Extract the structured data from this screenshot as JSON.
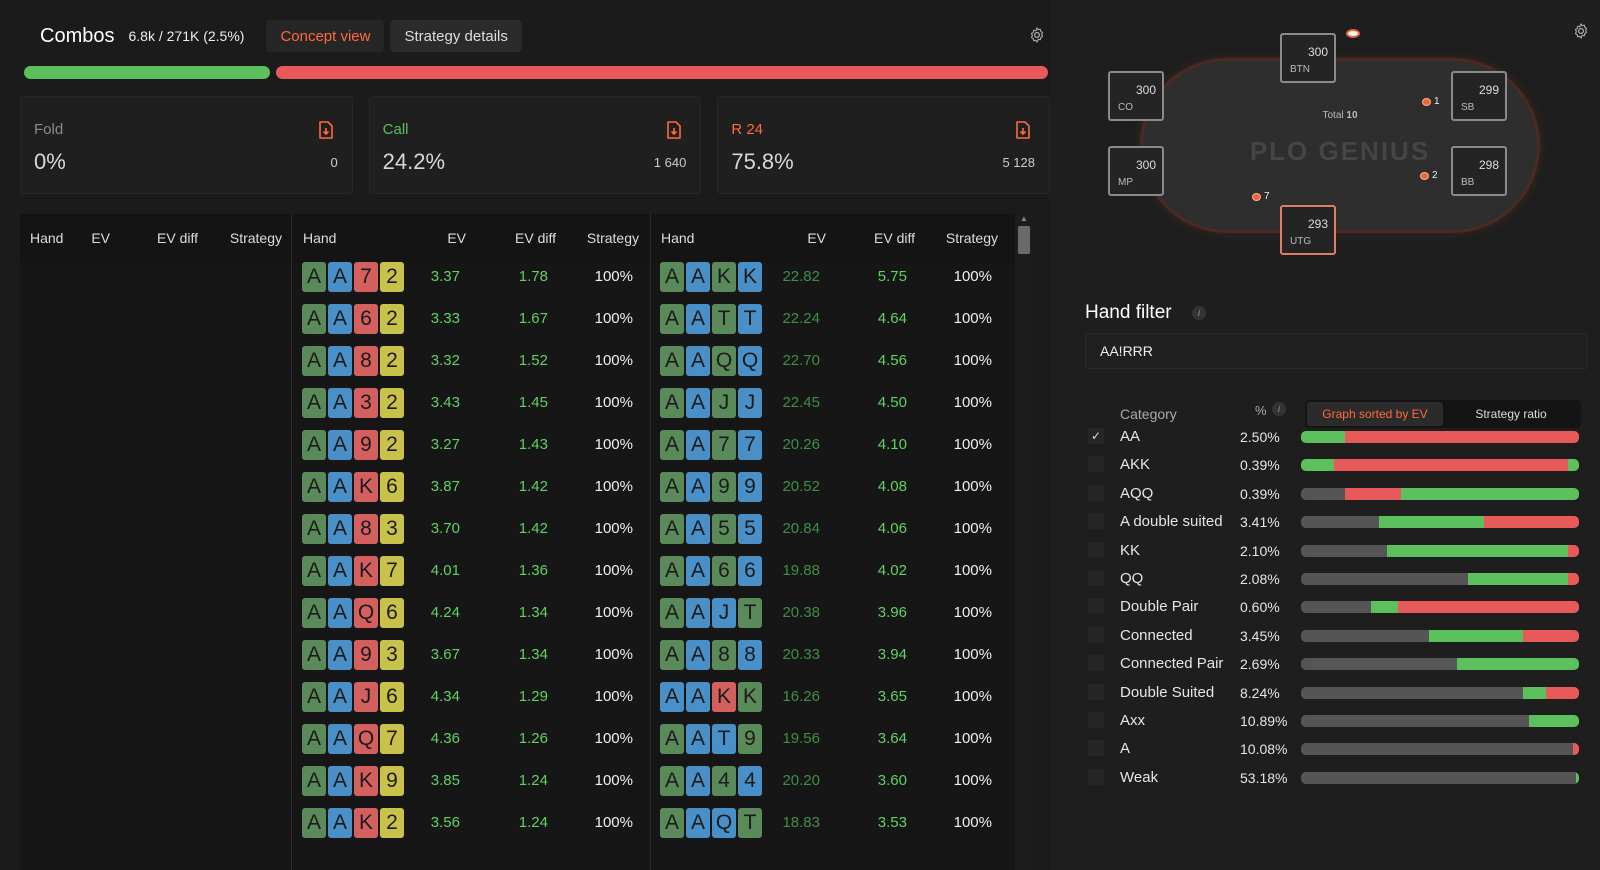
{
  "header": {
    "title": "Combos",
    "combos_count": "6.8k / 271K (2.5%)",
    "concept_view": "Concept view",
    "strategy_details": "Strategy details"
  },
  "colors": {
    "accent": "#ff6a3d",
    "fold": "#8a8a8a",
    "call": "#5cc05c",
    "raise": "#e85a5a",
    "suit_green": "#5a8a5a",
    "suit_blue": "#4a90c8",
    "suit_red": "#d45f5f",
    "suit_yellow": "#c9c24a"
  },
  "strategy_bar": [
    {
      "action": "call",
      "percent": 24.2
    },
    {
      "action": "raise",
      "percent": 75.8
    }
  ],
  "actions": [
    {
      "label": "Fold",
      "percent": "0%",
      "count": "0",
      "color": "#8a8a8a",
      "icon": "export-icon"
    },
    {
      "label": "Call",
      "percent": "24.2%",
      "count": "1 640",
      "color": "#5cc05c",
      "icon": "export-icon"
    },
    {
      "label": "R 24",
      "percent": "75.8%",
      "count": "5 128",
      "color": "#ff6a3d",
      "icon": "export-icon"
    }
  ],
  "table": {
    "columns": [
      "Hand",
      "EV",
      "EV diff",
      "Strategy"
    ],
    "middle_rows": [
      {
        "cards": [
          [
            "A",
            "g"
          ],
          [
            "A",
            "b"
          ],
          [
            "7",
            "r"
          ],
          [
            "2",
            "y"
          ]
        ],
        "ev": "3.37",
        "ev_diff": "1.78",
        "strategy": "100%"
      },
      {
        "cards": [
          [
            "A",
            "g"
          ],
          [
            "A",
            "b"
          ],
          [
            "6",
            "r"
          ],
          [
            "2",
            "y"
          ]
        ],
        "ev": "3.33",
        "ev_diff": "1.67",
        "strategy": "100%"
      },
      {
        "cards": [
          [
            "A",
            "g"
          ],
          [
            "A",
            "b"
          ],
          [
            "8",
            "r"
          ],
          [
            "2",
            "y"
          ]
        ],
        "ev": "3.32",
        "ev_diff": "1.52",
        "strategy": "100%"
      },
      {
        "cards": [
          [
            "A",
            "g"
          ],
          [
            "A",
            "b"
          ],
          [
            "3",
            "r"
          ],
          [
            "2",
            "y"
          ]
        ],
        "ev": "3.43",
        "ev_diff": "1.45",
        "strategy": "100%"
      },
      {
        "cards": [
          [
            "A",
            "g"
          ],
          [
            "A",
            "b"
          ],
          [
            "9",
            "r"
          ],
          [
            "2",
            "y"
          ]
        ],
        "ev": "3.27",
        "ev_diff": "1.43",
        "strategy": "100%"
      },
      {
        "cards": [
          [
            "A",
            "g"
          ],
          [
            "A",
            "b"
          ],
          [
            "K",
            "r"
          ],
          [
            "6",
            "y"
          ]
        ],
        "ev": "3.87",
        "ev_diff": "1.42",
        "strategy": "100%"
      },
      {
        "cards": [
          [
            "A",
            "g"
          ],
          [
            "A",
            "b"
          ],
          [
            "8",
            "r"
          ],
          [
            "3",
            "y"
          ]
        ],
        "ev": "3.70",
        "ev_diff": "1.42",
        "strategy": "100%"
      },
      {
        "cards": [
          [
            "A",
            "g"
          ],
          [
            "A",
            "b"
          ],
          [
            "K",
            "r"
          ],
          [
            "7",
            "y"
          ]
        ],
        "ev": "4.01",
        "ev_diff": "1.36",
        "strategy": "100%"
      },
      {
        "cards": [
          [
            "A",
            "g"
          ],
          [
            "A",
            "b"
          ],
          [
            "Q",
            "r"
          ],
          [
            "6",
            "y"
          ]
        ],
        "ev": "4.24",
        "ev_diff": "1.34",
        "strategy": "100%"
      },
      {
        "cards": [
          [
            "A",
            "g"
          ],
          [
            "A",
            "b"
          ],
          [
            "9",
            "r"
          ],
          [
            "3",
            "y"
          ]
        ],
        "ev": "3.67",
        "ev_diff": "1.34",
        "strategy": "100%"
      },
      {
        "cards": [
          [
            "A",
            "g"
          ],
          [
            "A",
            "b"
          ],
          [
            "J",
            "r"
          ],
          [
            "6",
            "y"
          ]
        ],
        "ev": "4.34",
        "ev_diff": "1.29",
        "strategy": "100%"
      },
      {
        "cards": [
          [
            "A",
            "g"
          ],
          [
            "A",
            "b"
          ],
          [
            "Q",
            "r"
          ],
          [
            "7",
            "y"
          ]
        ],
        "ev": "4.36",
        "ev_diff": "1.26",
        "strategy": "100%"
      },
      {
        "cards": [
          [
            "A",
            "g"
          ],
          [
            "A",
            "b"
          ],
          [
            "K",
            "r"
          ],
          [
            "9",
            "y"
          ]
        ],
        "ev": "3.85",
        "ev_diff": "1.24",
        "strategy": "100%"
      },
      {
        "cards": [
          [
            "A",
            "g"
          ],
          [
            "A",
            "b"
          ],
          [
            "K",
            "r"
          ],
          [
            "2",
            "y"
          ]
        ],
        "ev": "3.56",
        "ev_diff": "1.24",
        "strategy": "100%"
      }
    ],
    "right_rows": [
      {
        "cards": [
          [
            "A",
            "g"
          ],
          [
            "A",
            "b"
          ],
          [
            "K",
            "g"
          ],
          [
            "K",
            "b"
          ]
        ],
        "ev": "22.82",
        "ev_diff": "5.75",
        "strategy": "100%"
      },
      {
        "cards": [
          [
            "A",
            "g"
          ],
          [
            "A",
            "b"
          ],
          [
            "T",
            "g"
          ],
          [
            "T",
            "b"
          ]
        ],
        "ev": "22.24",
        "ev_diff": "4.64",
        "strategy": "100%"
      },
      {
        "cards": [
          [
            "A",
            "g"
          ],
          [
            "A",
            "b"
          ],
          [
            "Q",
            "g"
          ],
          [
            "Q",
            "b"
          ]
        ],
        "ev": "22.70",
        "ev_diff": "4.56",
        "strategy": "100%"
      },
      {
        "cards": [
          [
            "A",
            "g"
          ],
          [
            "A",
            "b"
          ],
          [
            "J",
            "g"
          ],
          [
            "J",
            "b"
          ]
        ],
        "ev": "22.45",
        "ev_diff": "4.50",
        "strategy": "100%"
      },
      {
        "cards": [
          [
            "A",
            "g"
          ],
          [
            "A",
            "b"
          ],
          [
            "7",
            "g"
          ],
          [
            "7",
            "b"
          ]
        ],
        "ev": "20.26",
        "ev_diff": "4.10",
        "strategy": "100%"
      },
      {
        "cards": [
          [
            "A",
            "g"
          ],
          [
            "A",
            "b"
          ],
          [
            "9",
            "g"
          ],
          [
            "9",
            "b"
          ]
        ],
        "ev": "20.52",
        "ev_diff": "4.08",
        "strategy": "100%"
      },
      {
        "cards": [
          [
            "A",
            "g"
          ],
          [
            "A",
            "b"
          ],
          [
            "5",
            "g"
          ],
          [
            "5",
            "b"
          ]
        ],
        "ev": "20.84",
        "ev_diff": "4.06",
        "strategy": "100%"
      },
      {
        "cards": [
          [
            "A",
            "g"
          ],
          [
            "A",
            "b"
          ],
          [
            "6",
            "g"
          ],
          [
            "6",
            "b"
          ]
        ],
        "ev": "19.88",
        "ev_diff": "4.02",
        "strategy": "100%"
      },
      {
        "cards": [
          [
            "A",
            "g"
          ],
          [
            "A",
            "b"
          ],
          [
            "J",
            "b"
          ],
          [
            "T",
            "g"
          ]
        ],
        "ev": "20.38",
        "ev_diff": "3.96",
        "strategy": "100%"
      },
      {
        "cards": [
          [
            "A",
            "g"
          ],
          [
            "A",
            "b"
          ],
          [
            "8",
            "g"
          ],
          [
            "8",
            "b"
          ]
        ],
        "ev": "20.33",
        "ev_diff": "3.94",
        "strategy": "100%"
      },
      {
        "cards": [
          [
            "A",
            "b"
          ],
          [
            "A",
            "b"
          ],
          [
            "K",
            "r"
          ],
          [
            "K",
            "g"
          ]
        ],
        "ev": "16.26",
        "ev_diff": "3.65",
        "strategy": "100%"
      },
      {
        "cards": [
          [
            "A",
            "g"
          ],
          [
            "A",
            "b"
          ],
          [
            "T",
            "b"
          ],
          [
            "9",
            "g"
          ]
        ],
        "ev": "19.56",
        "ev_diff": "3.64",
        "strategy": "100%"
      },
      {
        "cards": [
          [
            "A",
            "g"
          ],
          [
            "A",
            "b"
          ],
          [
            "4",
            "g"
          ],
          [
            "4",
            "b"
          ]
        ],
        "ev": "20.20",
        "ev_diff": "3.60",
        "strategy": "100%"
      },
      {
        "cards": [
          [
            "A",
            "g"
          ],
          [
            "A",
            "b"
          ],
          [
            "Q",
            "b"
          ],
          [
            "T",
            "g"
          ]
        ],
        "ev": "18.83",
        "ev_diff": "3.53",
        "strategy": "100%"
      }
    ]
  },
  "poker_table": {
    "logo": "PLO GENIUS",
    "total_label": "Total",
    "total_value": "10",
    "seats": [
      {
        "pos": "BTN",
        "stack": "300"
      },
      {
        "pos": "CO",
        "stack": "300"
      },
      {
        "pos": "SB",
        "stack": "299"
      },
      {
        "pos": "MP",
        "stack": "300"
      },
      {
        "pos": "BB",
        "stack": "298"
      },
      {
        "pos": "UTG",
        "stack": "293"
      }
    ],
    "bets": [
      {
        "pos": "SB",
        "amount": "1"
      },
      {
        "pos": "BB",
        "amount": "2"
      },
      {
        "pos": "UTG",
        "amount": "7"
      }
    ]
  },
  "hand_filter": {
    "title": "Hand filter",
    "info": "i",
    "value": "AA!RRR",
    "category_header": "Category",
    "percent_header": "%",
    "sort_graph": "Graph sorted by EV",
    "sort_ratio": "Strategy ratio",
    "categories": [
      {
        "name": "AA",
        "pct": "2.50%",
        "checked": true,
        "bar": [
          [
            "call",
            0.16
          ],
          [
            "raise",
            0.84
          ]
        ]
      },
      {
        "name": "AKK",
        "pct": "0.39%",
        "checked": false,
        "bar": [
          [
            "call",
            0.12
          ],
          [
            "raise",
            0.84
          ],
          [
            "call",
            0.04
          ]
        ]
      },
      {
        "name": "AQQ",
        "pct": "0.39%",
        "checked": false,
        "bar": [
          [
            "fold",
            0.16
          ],
          [
            "raise",
            0.2
          ],
          [
            "call",
            0.64
          ]
        ]
      },
      {
        "name": "A double suited",
        "pct": "3.41%",
        "checked": false,
        "bar": [
          [
            "fold",
            0.28
          ],
          [
            "call",
            0.38
          ],
          [
            "raise",
            0.34
          ]
        ]
      },
      {
        "name": "KK",
        "pct": "2.10%",
        "checked": false,
        "bar": [
          [
            "fold",
            0.31
          ],
          [
            "call",
            0.65
          ],
          [
            "raise",
            0.04
          ]
        ]
      },
      {
        "name": "QQ",
        "pct": "2.08%",
        "checked": false,
        "bar": [
          [
            "fold",
            0.6
          ],
          [
            "call",
            0.36
          ],
          [
            "raise",
            0.04
          ]
        ]
      },
      {
        "name": "Double Pair",
        "pct": "0.60%",
        "checked": false,
        "bar": [
          [
            "fold",
            0.25
          ],
          [
            "call",
            0.1
          ],
          [
            "raise",
            0.65
          ]
        ]
      },
      {
        "name": "Connected",
        "pct": "3.45%",
        "checked": false,
        "bar": [
          [
            "fold",
            0.46
          ],
          [
            "call",
            0.34
          ],
          [
            "raise",
            0.2
          ]
        ]
      },
      {
        "name": "Connected Pair",
        "pct": "2.69%",
        "checked": false,
        "bar": [
          [
            "fold",
            0.56
          ],
          [
            "call",
            0.44
          ]
        ]
      },
      {
        "name": "Double Suited",
        "pct": "8.24%",
        "checked": false,
        "bar": [
          [
            "fold",
            0.8
          ],
          [
            "call",
            0.08
          ],
          [
            "raise",
            0.12
          ]
        ]
      },
      {
        "name": "Axx",
        "pct": "10.89%",
        "checked": false,
        "bar": [
          [
            "fold",
            0.82
          ],
          [
            "call",
            0.18
          ]
        ]
      },
      {
        "name": "A",
        "pct": "10.08%",
        "checked": false,
        "bar": [
          [
            "fold",
            0.98
          ],
          [
            "raise",
            0.02
          ]
        ]
      },
      {
        "name": "Weak",
        "pct": "53.18%",
        "checked": false,
        "bar": [
          [
            "fold",
            0.99
          ],
          [
            "call",
            0.01
          ]
        ]
      }
    ]
  }
}
